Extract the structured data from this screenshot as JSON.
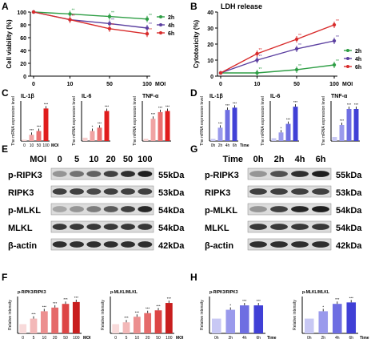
{
  "panel_labels": [
    "A",
    "B",
    "C",
    "D",
    "E",
    "F",
    "G",
    "H"
  ],
  "colors": {
    "green": "#2e9e45",
    "purple": "#5b3fa0",
    "red": "#d82c2c",
    "blue": "#4b4bdc",
    "black": "#000000"
  },
  "common": {
    "mrna_ylabel": "The mRNA expression level",
    "relative_intensity": "Relative intensity",
    "moi": "MOI",
    "time": "Time",
    "sig3": "***",
    "sig2": "**",
    "sig1": "*"
  },
  "legend": [
    "2h",
    "4h",
    "6h"
  ],
  "blots": {
    "E": {
      "axis_label": "MOI",
      "conditions": [
        "0",
        "5",
        "10",
        "20",
        "50",
        "100"
      ],
      "rows": [
        {
          "protein": "p-RIPK3",
          "mw": "55kDa"
        },
        {
          "protein": "RIPK3",
          "mw": "53kDa"
        },
        {
          "protein": "p-MLKL",
          "mw": "54kDa"
        },
        {
          "protein": "MLKL",
          "mw": "54kDa"
        },
        {
          "protein": "β-actin",
          "mw": "42kDa"
        }
      ]
    },
    "G": {
      "axis_label": "Time",
      "conditions": [
        "0h",
        "2h",
        "4h",
        "6h"
      ],
      "rows": [
        {
          "protein": "p-RIPK3",
          "mw": "55kDa"
        },
        {
          "protein": "RIPK3",
          "mw": "53kDa"
        },
        {
          "protein": "p-MLKL",
          "mw": "54kDa"
        },
        {
          "protein": "MLKL",
          "mw": "54kDa"
        },
        {
          "protein": "β-actin",
          "mw": "42kDa"
        }
      ]
    }
  },
  "chart_data": [
    {
      "panel": "A",
      "type": "line",
      "title": "",
      "xlabel": "MOI",
      "ylabel": "Cell viability (%)",
      "x": [
        0,
        10,
        50,
        100
      ],
      "x_tick_labels": [
        "0",
        "10",
        "50",
        "100"
      ],
      "ylim": [
        0,
        100
      ],
      "yticks": [
        0,
        20,
        40,
        60,
        80,
        100
      ],
      "series": [
        {
          "name": "2h",
          "color": "#2e9e45",
          "values": [
            100,
            97,
            93,
            89
          ]
        },
        {
          "name": "4h",
          "color": "#5b3fa0",
          "values": [
            100,
            88,
            82,
            75
          ]
        },
        {
          "name": "6h",
          "color": "#d82c2c",
          "values": [
            100,
            88,
            74,
            66
          ]
        }
      ]
    },
    {
      "panel": "B",
      "type": "line",
      "title": "LDH release",
      "xlabel": "MOI",
      "ylabel": "Cytotoxicity (%)",
      "x": [
        0,
        10,
        50,
        100
      ],
      "x_tick_labels": [
        "0",
        "10",
        "50",
        "100"
      ],
      "ylim": [
        0,
        40
      ],
      "yticks": [
        0,
        10,
        20,
        30,
        40
      ],
      "series": [
        {
          "name": "2h",
          "color": "#2e9e45",
          "values": [
            2,
            2,
            4,
            7
          ]
        },
        {
          "name": "4h",
          "color": "#5b3fa0",
          "values": [
            2,
            10,
            17,
            22
          ]
        },
        {
          "name": "6h",
          "color": "#d82c2c",
          "values": [
            2,
            14,
            23,
            32
          ]
        }
      ]
    },
    {
      "panel": "C",
      "type": "bar",
      "title": "IL-1β",
      "categories": [
        "0",
        "10",
        "50",
        "100"
      ],
      "xlabel": "MOI",
      "values": [
        1,
        5,
        8,
        26
      ],
      "ylim": [
        0,
        32
      ],
      "colors": [
        "#f6cccc",
        "#f0a3a3",
        "#ea6f6f",
        "#e01c1c"
      ]
    },
    {
      "panel": "C",
      "type": "bar",
      "title": "IL-6",
      "categories": [
        "0",
        "10",
        "50",
        "100"
      ],
      "values": [
        1,
        3,
        4,
        9
      ],
      "ylim": [
        0,
        12
      ],
      "colors": [
        "#f6cccc",
        "#f0a3a3",
        "#ea6f6f",
        "#e01c1c"
      ]
    },
    {
      "panel": "C",
      "type": "bar",
      "title": "TNF-α",
      "categories": [
        "0",
        "10",
        "50",
        "100"
      ],
      "values": [
        1,
        10,
        13,
        13.5
      ],
      "ylim": [
        0,
        18
      ],
      "colors": [
        "#f6cccc",
        "#f0a3a3",
        "#ea6f6f",
        "#e01c1c"
      ]
    },
    {
      "panel": "D",
      "type": "bar",
      "title": "IL-1β",
      "categories": [
        "0h",
        "2h",
        "4h",
        "6h"
      ],
      "xlabel": "Time",
      "values": [
        1,
        6,
        14,
        15
      ],
      "ylim": [
        0,
        18
      ],
      "colors": [
        "#c8c8f4",
        "#9a9aec",
        "#6e6ee2",
        "#4040d6"
      ]
    },
    {
      "panel": "D",
      "type": "bar",
      "title": "IL-6",
      "categories": [
        "0h",
        "2h",
        "4h",
        "6h"
      ],
      "values": [
        1,
        3,
        6,
        12
      ],
      "ylim": [
        0,
        14
      ],
      "colors": [
        "#c8c8f4",
        "#9a9aec",
        "#6e6ee2",
        "#4040d6"
      ]
    },
    {
      "panel": "D",
      "type": "bar",
      "title": "TNF-α",
      "categories": [
        "0h",
        "2h",
        "4h",
        "6h"
      ],
      "values": [
        1,
        4,
        8,
        8
      ],
      "ylim": [
        0,
        10
      ],
      "colors": [
        "#c8c8f4",
        "#9a9aec",
        "#6e6ee2",
        "#4040d6"
      ]
    },
    {
      "panel": "F",
      "type": "bar",
      "title": "p-RIPK3/RIPK3",
      "ylabel": "Relative intensity",
      "xlabel": "MOI",
      "categories": [
        "0",
        "5",
        "10",
        "20",
        "50",
        "100"
      ],
      "values": [
        1,
        1.6,
        2.4,
        2.8,
        3.2,
        3.4
      ],
      "ylim": [
        0,
        4
      ],
      "colors": [
        "#f8dada",
        "#f3b8b8",
        "#ec8f8f",
        "#e56a6a",
        "#dd4545",
        "#c81e1e"
      ]
    },
    {
      "panel": "F",
      "type": "bar",
      "title": "p-MLKL/MLKL",
      "ylabel": "Relative intensity",
      "xlabel": "MOI",
      "categories": [
        "0",
        "5",
        "10",
        "20",
        "50",
        "100"
      ],
      "values": [
        1,
        1.2,
        1.8,
        2.2,
        2.5,
        3.3
      ],
      "ylim": [
        0,
        4
      ],
      "colors": [
        "#f8dada",
        "#f3b8b8",
        "#ec8f8f",
        "#e56a6a",
        "#dd4545",
        "#c81e1e"
      ]
    },
    {
      "panel": "H",
      "type": "bar",
      "title": "p-RIPK3/RIPK3",
      "ylabel": "Relative intensity",
      "xlabel": "Time",
      "categories": [
        "0h",
        "2h",
        "4h",
        "6h"
      ],
      "values": [
        1,
        1.6,
        1.9,
        1.9
      ],
      "ylim": [
        0,
        2.5
      ],
      "colors": [
        "#c8c8f4",
        "#9a9aec",
        "#6e6ee2",
        "#4040d6"
      ]
    },
    {
      "panel": "H",
      "type": "bar",
      "title": "p-MLKL/MLKL",
      "ylabel": "Relative intensity",
      "xlabel": "Time",
      "categories": [
        "0h",
        "2h",
        "4h",
        "6h"
      ],
      "values": [
        1,
        1.5,
        2.0,
        2.1
      ],
      "ylim": [
        0,
        2.5
      ],
      "colors": [
        "#c8c8f4",
        "#9a9aec",
        "#6e6ee2",
        "#4040d6"
      ]
    }
  ]
}
